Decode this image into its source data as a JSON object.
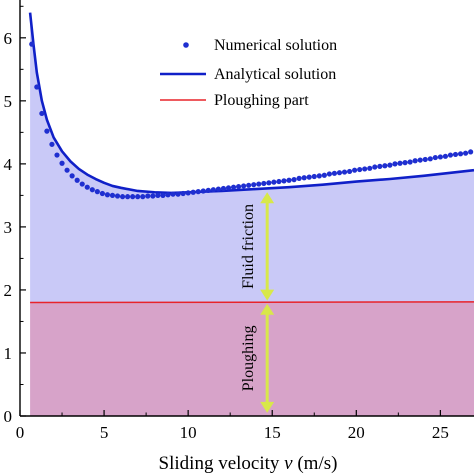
{
  "chart_data": {
    "type": "line",
    "xlabel": "Sliding velocity",
    "xlabel_symbol": "v",
    "xlabel_unit": "(m/s)",
    "ylabel": "",
    "xlim": [
      0,
      27
    ],
    "ylim": [
      0,
      6.6
    ],
    "xticks": [
      0,
      5,
      10,
      15,
      20,
      25
    ],
    "yticks": [
      0,
      1,
      2,
      3,
      4,
      5,
      6
    ],
    "ytick_labels": [
      "0",
      "1",
      "2",
      "3",
      "4",
      "5",
      "6"
    ],
    "grid": false,
    "legend_position": "top-right",
    "series": [
      {
        "name": "Numerical solution",
        "style": "markers",
        "color": "#1f2fd0",
        "points": [
          [
            0.7,
            5.9
          ],
          [
            1.0,
            5.22
          ],
          [
            1.3,
            4.8
          ],
          [
            1.6,
            4.52
          ],
          [
            1.9,
            4.31
          ],
          [
            2.2,
            4.14
          ],
          [
            2.5,
            4.01
          ],
          [
            2.8,
            3.9
          ],
          [
            3.1,
            3.81
          ],
          [
            3.4,
            3.74
          ],
          [
            3.7,
            3.68
          ],
          [
            4.0,
            3.63
          ],
          [
            4.3,
            3.59
          ],
          [
            4.6,
            3.56
          ],
          [
            4.9,
            3.53
          ],
          [
            5.2,
            3.51
          ],
          [
            5.5,
            3.5
          ],
          [
            5.8,
            3.49
          ],
          [
            6.1,
            3.48
          ],
          [
            6.4,
            3.48
          ],
          [
            6.7,
            3.48
          ],
          [
            7.0,
            3.48
          ],
          [
            7.3,
            3.48
          ],
          [
            7.6,
            3.49
          ],
          [
            7.9,
            3.49
          ],
          [
            8.2,
            3.5
          ],
          [
            8.5,
            3.5
          ],
          [
            8.8,
            3.51
          ],
          [
            9.1,
            3.52
          ],
          [
            9.4,
            3.52
          ],
          [
            9.7,
            3.53
          ],
          [
            10.0,
            3.54
          ],
          [
            10.3,
            3.55
          ],
          [
            10.6,
            3.56
          ],
          [
            10.9,
            3.57
          ],
          [
            11.2,
            3.58
          ],
          [
            11.5,
            3.59
          ],
          [
            11.8,
            3.6
          ],
          [
            12.1,
            3.61
          ],
          [
            12.4,
            3.62
          ],
          [
            12.7,
            3.63
          ],
          [
            13.0,
            3.64
          ],
          [
            13.3,
            3.65
          ],
          [
            13.6,
            3.66
          ],
          [
            13.9,
            3.67
          ],
          [
            14.2,
            3.68
          ],
          [
            14.5,
            3.69
          ],
          [
            14.8,
            3.7
          ],
          [
            15.1,
            3.71
          ],
          [
            15.4,
            3.72
          ],
          [
            15.7,
            3.73
          ],
          [
            16.0,
            3.74
          ],
          [
            16.3,
            3.75
          ],
          [
            16.6,
            3.77
          ],
          [
            16.9,
            3.78
          ],
          [
            17.2,
            3.79
          ],
          [
            17.5,
            3.8
          ],
          [
            17.8,
            3.81
          ],
          [
            18.1,
            3.82
          ],
          [
            18.4,
            3.84
          ],
          [
            18.7,
            3.85
          ],
          [
            19.0,
            3.86
          ],
          [
            19.3,
            3.87
          ],
          [
            19.6,
            3.88
          ],
          [
            19.9,
            3.9
          ],
          [
            20.2,
            3.91
          ],
          [
            20.5,
            3.92
          ],
          [
            20.8,
            3.93
          ],
          [
            21.1,
            3.95
          ],
          [
            21.4,
            3.96
          ],
          [
            21.7,
            3.97
          ],
          [
            22.0,
            3.98
          ],
          [
            22.3,
            4.0
          ],
          [
            22.6,
            4.01
          ],
          [
            22.9,
            4.02
          ],
          [
            23.2,
            4.03
          ],
          [
            23.5,
            4.05
          ],
          [
            23.8,
            4.06
          ],
          [
            24.1,
            4.07
          ],
          [
            24.4,
            4.08
          ],
          [
            24.7,
            4.1
          ],
          [
            25.0,
            4.11
          ],
          [
            25.3,
            4.12
          ],
          [
            25.6,
            4.14
          ],
          [
            25.9,
            4.15
          ],
          [
            26.2,
            4.16
          ],
          [
            26.5,
            4.17
          ],
          [
            26.8,
            4.19
          ]
        ]
      },
      {
        "name": "Analytical solution",
        "style": "line",
        "color": "#1020c8",
        "points": [
          [
            0.6,
            6.4
          ],
          [
            0.8,
            5.9
          ],
          [
            1.0,
            5.45
          ],
          [
            1.3,
            5.0
          ],
          [
            1.6,
            4.7
          ],
          [
            2.0,
            4.42
          ],
          [
            2.5,
            4.2
          ],
          [
            3.0,
            4.04
          ],
          [
            3.5,
            3.92
          ],
          [
            4.0,
            3.83
          ],
          [
            4.5,
            3.76
          ],
          [
            5.0,
            3.7
          ],
          [
            5.5,
            3.65
          ],
          [
            6.0,
            3.62
          ],
          [
            7.0,
            3.57
          ],
          [
            8.0,
            3.55
          ],
          [
            9.0,
            3.54
          ],
          [
            10.0,
            3.55
          ],
          [
            11.0,
            3.56
          ],
          [
            12.0,
            3.57
          ],
          [
            14.0,
            3.6
          ],
          [
            16.0,
            3.63
          ],
          [
            18.0,
            3.67
          ],
          [
            20.0,
            3.72
          ],
          [
            22.0,
            3.76
          ],
          [
            24.0,
            3.81
          ],
          [
            26.0,
            3.87
          ],
          [
            27.0,
            3.9
          ]
        ]
      },
      {
        "name": "Ploughing part",
        "style": "line",
        "color": "#e8232a",
        "points": [
          [
            0.6,
            1.8
          ],
          [
            27.0,
            1.81
          ]
        ]
      }
    ],
    "annotations": [
      {
        "text": "Fluid friction",
        "x": 14.7,
        "y_from": 1.83,
        "y_to": 3.55
      },
      {
        "text": "Ploughing",
        "x": 14.7,
        "y_from": 0.05,
        "y_to": 1.78
      }
    ],
    "colors": {
      "fluid_region": "#c9c9f7",
      "ploughing_region": "#d7a3c9",
      "arrow": "#d8e84a"
    }
  }
}
